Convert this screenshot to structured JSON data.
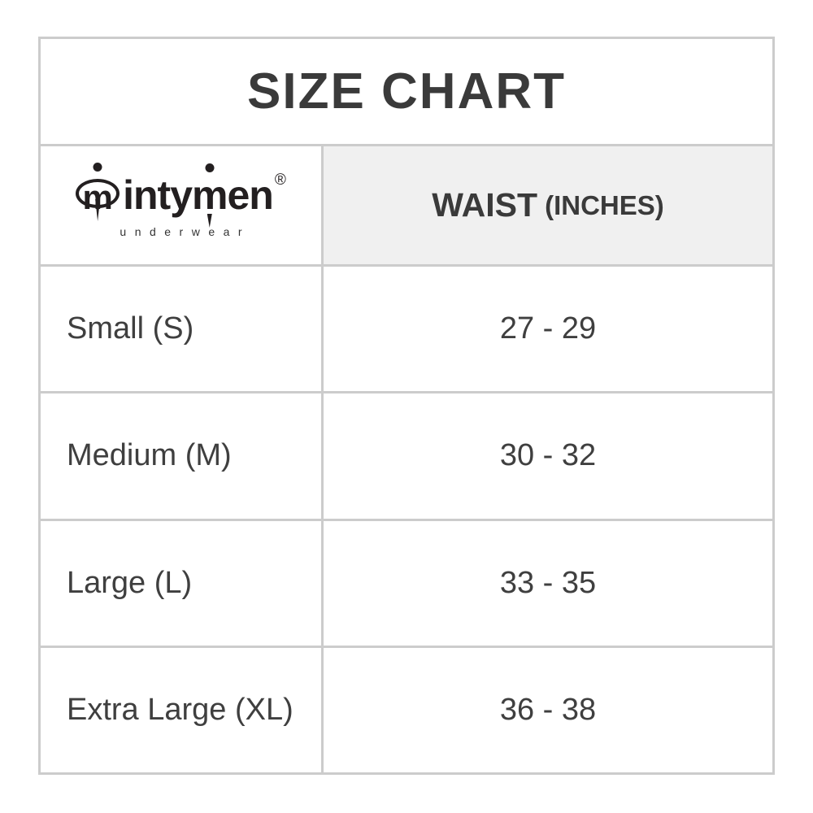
{
  "title": "SIZE CHART",
  "logo": {
    "icon_letter": "m",
    "brand_part1": "inty",
    "brand_m": "m",
    "brand_part2": "en",
    "registered": "®",
    "subtitle": "underwear"
  },
  "header": {
    "waist_label": "WAIST",
    "waist_unit": "(INCHES)"
  },
  "rows": [
    {
      "size": "Small (S)",
      "waist": "27 - 29"
    },
    {
      "size": "Medium (M)",
      "waist": "30 - 32"
    },
    {
      "size": "Large (L)",
      "waist": "33 - 35"
    },
    {
      "size": "Extra Large (XL)",
      "waist": "36 - 38"
    }
  ],
  "colors": {
    "border": "#cccccc",
    "header_bg": "#f0f0f0",
    "text": "#3f3f3f",
    "logo": "#231f20"
  }
}
